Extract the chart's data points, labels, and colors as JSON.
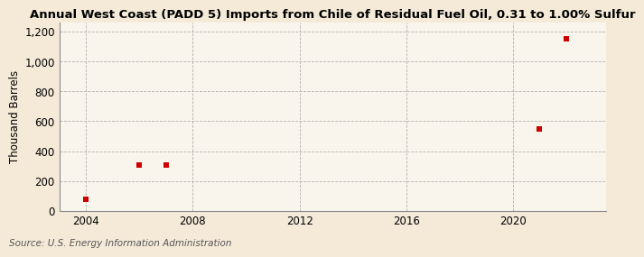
{
  "title": "Annual West Coast (PADD 5) Imports from Chile of Residual Fuel Oil, 0.31 to 1.00% Sulfur",
  "ylabel": "Thousand Barrels",
  "source": "Source: U.S. Energy Information Administration",
  "background_color": "#f5ead8",
  "plot_bg_color": "#faf5ec",
  "data_years": [
    2004,
    2006,
    2007,
    2021,
    2022
  ],
  "data_values": [
    75,
    305,
    305,
    550,
    1150
  ],
  "marker_color": "#cc0000",
  "marker_size": 5,
  "xlim": [
    2003,
    2023.5
  ],
  "ylim": [
    0,
    1260
  ],
  "xticks": [
    2004,
    2008,
    2012,
    2016,
    2020
  ],
  "yticks": [
    0,
    200,
    400,
    600,
    800,
    1000,
    1200
  ],
  "ytick_labels": [
    "0",
    "200",
    "400",
    "600",
    "800",
    "1,000",
    "1,200"
  ],
  "grid_color": "#aaaaaa",
  "title_fontsize": 9.5,
  "axis_fontsize": 8.5,
  "source_fontsize": 7.5
}
